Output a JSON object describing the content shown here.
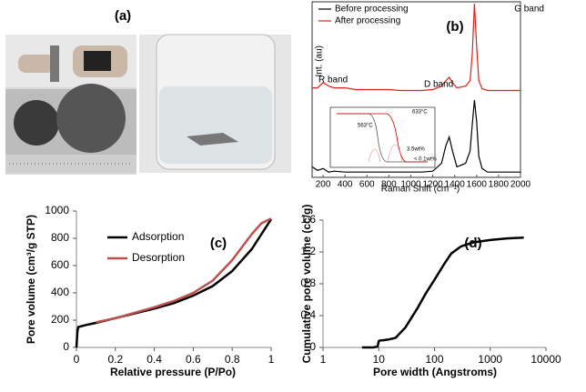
{
  "panel_a": {
    "label": "(a)"
  },
  "chart_data": [
    {
      "type": "line",
      "label": "(b)",
      "x_label": "Raman Shift (cm⁻¹)",
      "y_label": "Int. (au)",
      "xlim": [
        100,
        2000
      ],
      "xticks": [
        200,
        400,
        600,
        800,
        1000,
        1200,
        1400,
        1600,
        1800,
        2000
      ],
      "ylim": [
        0,
        10
      ],
      "legend": "upper left",
      "frame": true,
      "annotations": [
        "G band",
        "D band",
        "R band"
      ],
      "inset_annotations": [
        "633°C",
        "563°C",
        "3.5wt%",
        "< 0.1wt%"
      ],
      "series": [
        {
          "name": "Before processing",
          "color": "#000000",
          "x": [
            100,
            150,
            200,
            250,
            300,
            400,
            500,
            600,
            700,
            800,
            900,
            1000,
            1100,
            1200,
            1280,
            1320,
            1350,
            1380,
            1420,
            1500,
            1540,
            1560,
            1580,
            1600,
            1620,
            1650,
            1700,
            1800,
            1900,
            2000
          ],
          "values": [
            0.6,
            0.4,
            0.5,
            0.3,
            0.35,
            0.3,
            0.3,
            0.3,
            0.3,
            0.3,
            0.3,
            0.3,
            0.3,
            0.35,
            0.8,
            1.8,
            2.3,
            1.5,
            0.6,
            0.8,
            1.5,
            3.0,
            4.4,
            3.2,
            1.2,
            0.5,
            0.3,
            0.3,
            0.3,
            0.3
          ]
        },
        {
          "name": "After processing",
          "color": "#e0201b",
          "x": [
            100,
            150,
            200,
            250,
            300,
            400,
            500,
            600,
            700,
            800,
            900,
            1000,
            1100,
            1200,
            1280,
            1320,
            1350,
            1380,
            1420,
            1500,
            1540,
            1560,
            1580,
            1600,
            1620,
            1650,
            1700,
            1800,
            1900,
            2000
          ],
          "values": [
            5.1,
            5.1,
            5.4,
            5.2,
            5.1,
            5.1,
            5.0,
            5.0,
            5.0,
            5.0,
            4.95,
            4.95,
            4.95,
            5.0,
            5.2,
            5.5,
            5.7,
            5.4,
            5.1,
            5.2,
            5.5,
            7.0,
            9.9,
            7.5,
            5.5,
            5.05,
            4.95,
            4.95,
            4.95,
            4.95
          ]
        }
      ]
    },
    {
      "type": "line",
      "label": "(c)",
      "x_label": "Relative pressure (P/Po)",
      "y_label": "Pore volume (cm³/g STP)",
      "xlim": [
        0,
        1
      ],
      "xticks": [
        0,
        0.2,
        0.4,
        0.6,
        0.8,
        1
      ],
      "ylim": [
        0,
        1000
      ],
      "yticks": [
        0,
        200,
        400,
        600,
        800,
        1000
      ],
      "legend": "upper left",
      "frame": false,
      "series": [
        {
          "name": "Adsorption",
          "color": "#000000",
          "x": [
            0,
            0.005,
            0.01,
            0.05,
            0.1,
            0.2,
            0.3,
            0.4,
            0.5,
            0.6,
            0.7,
            0.8,
            0.9,
            0.95,
            1.0
          ],
          "values": [
            0,
            120,
            150,
            165,
            180,
            215,
            250,
            285,
            325,
            380,
            450,
            560,
            720,
            830,
            940
          ]
        },
        {
          "name": "Desorption",
          "color": "#c0504d",
          "x": [
            0.1,
            0.2,
            0.3,
            0.4,
            0.5,
            0.6,
            0.7,
            0.8,
            0.9,
            0.95,
            1.0
          ],
          "values": [
            185,
            215,
            255,
            295,
            340,
            400,
            490,
            640,
            830,
            910,
            945
          ]
        }
      ]
    },
    {
      "type": "line",
      "label": "(d)",
      "x_label": "Pore width (Angstroms)",
      "y_label": "Cumulative pore volume (cc/g)",
      "xscale": "log",
      "xlim": [
        1,
        10000
      ],
      "xticks": [
        1,
        10,
        100,
        1000,
        10000
      ],
      "ylim": [
        0,
        1.6
      ],
      "yticks": [
        0,
        0.4,
        0.8,
        1.2,
        1.6
      ],
      "frame": false,
      "series": [
        {
          "color": "#000000",
          "x": [
            5,
            8,
            9.5,
            10,
            11,
            12,
            15,
            20,
            30,
            50,
            70,
            100,
            150,
            200,
            300,
            500,
            1000,
            2000,
            4000
          ],
          "values": [
            0,
            0,
            0.01,
            0.08,
            0.09,
            0.09,
            0.1,
            0.12,
            0.25,
            0.5,
            0.68,
            0.85,
            1.05,
            1.18,
            1.27,
            1.32,
            1.35,
            1.37,
            1.38
          ]
        }
      ]
    }
  ]
}
